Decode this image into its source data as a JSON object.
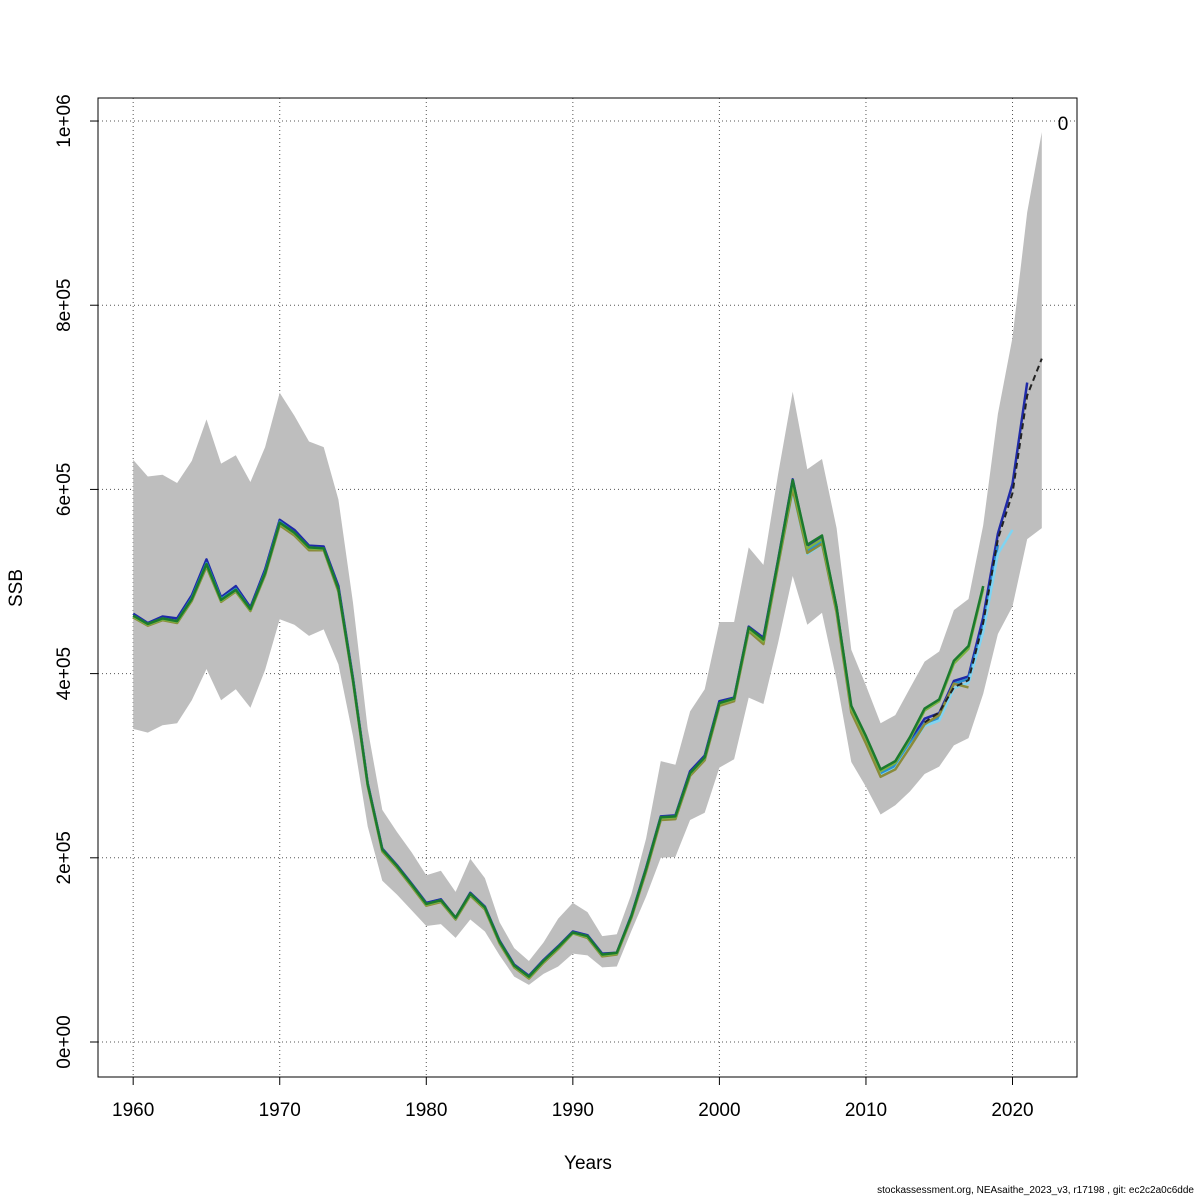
{
  "chart_data": {
    "type": "line",
    "title": "",
    "xlabel": "Years",
    "ylabel": "SSB",
    "xlim": [
      1957.6,
      2024.4
    ],
    "ylim": [
      -38000,
      1025000
    ],
    "x_ticks": [
      1960,
      1970,
      1980,
      1990,
      2000,
      2010,
      2020
    ],
    "y_ticks": [
      0,
      200000,
      400000,
      600000,
      800000,
      1000000
    ],
    "y_tick_labels": [
      "0e+00",
      "2e+05",
      "4e+05",
      "6e+05",
      "8e+05",
      "1e+06"
    ],
    "grid": true,
    "annotation": "0",
    "confidence_band": {
      "color": "#bebebe",
      "x": [
        1960,
        1961,
        1962,
        1963,
        1964,
        1965,
        1966,
        1967,
        1968,
        1969,
        1970,
        1971,
        1972,
        1973,
        1974,
        1975,
        1976,
        1977,
        1978,
        1979,
        1980,
        1981,
        1982,
        1983,
        1984,
        1985,
        1986,
        1987,
        1988,
        1989,
        1990,
        1991,
        1992,
        1993,
        1994,
        1995,
        1996,
        1997,
        1998,
        1999,
        2000,
        2001,
        2002,
        2003,
        2004,
        2005,
        2006,
        2007,
        2008,
        2009,
        2010,
        2011,
        2012,
        2013,
        2014,
        2015,
        2016,
        2017,
        2018,
        2019,
        2020,
        2021,
        2022
      ],
      "lower": [
        340000,
        336000,
        344000,
        346000,
        371000,
        405000,
        371000,
        383000,
        363000,
        404000,
        459000,
        453000,
        441000,
        448000,
        410000,
        332000,
        234000,
        175000,
        160000,
        143000,
        126000,
        128000,
        113000,
        133000,
        120000,
        94000,
        71000,
        62000,
        74000,
        82000,
        96000,
        94000,
        81000,
        82000,
        121000,
        158000,
        200000,
        201000,
        241000,
        249000,
        298000,
        307000,
        374000,
        367000,
        433000,
        506000,
        453000,
        466000,
        393000,
        304000,
        277000,
        247000,
        257000,
        272000,
        291000,
        299000,
        322000,
        330000,
        378000,
        443000,
        473000,
        546000,
        558000
      ],
      "upper": [
        632000,
        614000,
        616000,
        607000,
        631000,
        676000,
        628000,
        637000,
        608000,
        646000,
        705000,
        680000,
        652000,
        646000,
        589000,
        477000,
        340000,
        252000,
        228000,
        206000,
        181000,
        186000,
        163000,
        199000,
        178000,
        130000,
        102000,
        88000,
        108000,
        134000,
        151000,
        141000,
        115000,
        117000,
        161000,
        221000,
        305000,
        301000,
        359000,
        383000,
        456000,
        456000,
        537000,
        518000,
        616000,
        706000,
        622000,
        633000,
        558000,
        426000,
        387000,
        346000,
        355000,
        384000,
        413000,
        424000,
        469000,
        481000,
        561000,
        682000,
        765000,
        901000,
        988000
      ]
    },
    "series": [
      {
        "color": "#1f2aa8",
        "x": [
          1960,
          1961,
          1962,
          1963,
          1964,
          1965,
          1966,
          1967,
          1968,
          1969,
          1970,
          1971,
          1972,
          1973,
          1974,
          1975,
          1976,
          1977,
          1978,
          1979,
          1980,
          1981,
          1982,
          1983,
          1984,
          1985,
          1986,
          1987,
          1988,
          1989,
          1990,
          1991,
          1992,
          1993,
          1994,
          1995,
          1996,
          1997,
          1998,
          1999,
          2000,
          2001,
          2002,
          2003,
          2004,
          2005,
          2006,
          2007,
          2008,
          2009,
          2010,
          2011,
          2012,
          2013,
          2014,
          2015,
          2016,
          2017,
          2018,
          2019,
          2020,
          2021
        ],
        "values": [
          465000,
          455000,
          462000,
          460000,
          485000,
          524000,
          483000,
          495000,
          472000,
          513000,
          567000,
          556000,
          539000,
          538000,
          495000,
          395000,
          281000,
          210000,
          192000,
          172000,
          151000,
          155000,
          135000,
          162000,
          147000,
          110000,
          84000,
          72000,
          89000,
          104000,
          120000,
          116000,
          96000,
          97000,
          138000,
          189000,
          245000,
          246000,
          294000,
          311000,
          370000,
          374000,
          451000,
          439000,
          523000,
          611000,
          537000,
          548000,
          472000,
          363000,
          330000,
          294000,
          303000,
          327000,
          351000,
          357000,
          392000,
          397000,
          461000,
          552000,
          606000,
          716000
        ]
      },
      {
        "color": "#2a8fd0",
        "x": [
          1960,
          1961,
          1962,
          1963,
          1964,
          1965,
          1966,
          1967,
          1968,
          1969,
          1970,
          1971,
          1972,
          1973,
          1974,
          1975,
          1976,
          1977,
          1978,
          1979,
          1980,
          1981,
          1982,
          1983,
          1984,
          1985,
          1986,
          1987,
          1988,
          1989,
          1990,
          1991,
          1992,
          1993,
          1994,
          1995,
          1996,
          1997,
          1998,
          1999,
          2000,
          2001,
          2002,
          2003,
          2004,
          2005,
          2006,
          2007,
          2008,
          2009,
          2010,
          2011,
          2012,
          2013,
          2014,
          2015,
          2016,
          2017,
          2018,
          2019
        ],
        "values": [
          463000,
          454000,
          460000,
          457000,
          482000,
          520000,
          481000,
          492000,
          470000,
          510000,
          565000,
          553000,
          537000,
          536000,
          492000,
          393000,
          280000,
          209000,
          191000,
          171000,
          150000,
          154000,
          134000,
          161000,
          146000,
          109000,
          83000,
          71000,
          88000,
          103000,
          119000,
          115000,
          95000,
          96000,
          137000,
          188000,
          244000,
          245000,
          292000,
          309000,
          368000,
          373000,
          449000,
          436000,
          521000,
          608000,
          533000,
          543000,
          470000,
          361000,
          328000,
          291000,
          300000,
          324000,
          346000,
          352000,
          389000,
          394000,
          452000,
          540000
        ]
      },
      {
        "color": "#7fd4f2",
        "x": [
          1960,
          1961,
          1962,
          1963,
          1964,
          1965,
          1966,
          1967,
          1968,
          1969,
          1970,
          1971,
          1972,
          1973,
          1974,
          1975,
          1976,
          1977,
          1978,
          1979,
          1980,
          1981,
          1982,
          1983,
          1984,
          1985,
          1986,
          1987,
          1988,
          1989,
          1990,
          1991,
          1992,
          1993,
          1994,
          1995,
          1996,
          1997,
          1998,
          1999,
          2000,
          2001,
          2002,
          2003,
          2004,
          2005,
          2006,
          2007,
          2008,
          2009,
          2010,
          2011,
          2012,
          2013,
          2014,
          2015,
          2016,
          2017,
          2018,
          2019,
          2020
        ],
        "values": [
          462000,
          453000,
          459000,
          456000,
          480000,
          517000,
          479000,
          490000,
          469000,
          508000,
          562000,
          551000,
          535000,
          535000,
          490000,
          392000,
          279000,
          208000,
          190000,
          170000,
          149000,
          153000,
          133000,
          160000,
          145000,
          108000,
          82000,
          70000,
          87000,
          102000,
          118000,
          114000,
          94000,
          95000,
          136000,
          186000,
          242000,
          243000,
          290000,
          307000,
          366000,
          371000,
          447000,
          433000,
          518000,
          598000,
          530000,
          540000,
          467000,
          359000,
          325000,
          289000,
          297000,
          321000,
          343000,
          349000,
          384000,
          390000,
          445000,
          530000,
          556000
        ]
      },
      {
        "color": "#8b8b3a",
        "x": [
          1960,
          1961,
          1962,
          1963,
          1964,
          1965,
          1966,
          1967,
          1968,
          1969,
          1970,
          1971,
          1972,
          1973,
          1974,
          1975,
          1976,
          1977,
          1978,
          1979,
          1980,
          1981,
          1982,
          1983,
          1984,
          1985,
          1986,
          1987,
          1988,
          1989,
          1990,
          1991,
          1992,
          1993,
          1994,
          1995,
          1996,
          1997,
          1998,
          1999,
          2000,
          2001,
          2002,
          2003,
          2004,
          2005,
          2006,
          2007,
          2008,
          2009,
          2010,
          2011,
          2012,
          2013,
          2014,
          2015,
          2016,
          2017
        ],
        "values": [
          461000,
          452000,
          458000,
          455000,
          479000,
          516000,
          478000,
          489000,
          468000,
          507000,
          561000,
          550000,
          534000,
          534000,
          489000,
          391000,
          278000,
          207000,
          189000,
          169000,
          148000,
          152000,
          133000,
          159000,
          144000,
          107000,
          81000,
          69000,
          86000,
          101000,
          118000,
          113000,
          93000,
          95000,
          135000,
          185000,
          241000,
          242000,
          289000,
          306000,
          365000,
          370000,
          446000,
          432000,
          517000,
          600000,
          531000,
          541000,
          466000,
          358000,
          324000,
          288000,
          296000,
          320000,
          345000,
          355000,
          389000,
          385000
        ]
      },
      {
        "color": "#7cb342",
        "x": [
          1960,
          1961,
          1962,
          1963,
          1964,
          1965,
          1966,
          1967,
          1968,
          1969,
          1970,
          1971,
          1972,
          1973,
          1974,
          1975,
          1976,
          1977,
          1978,
          1979,
          1980,
          1981,
          1982,
          1983,
          1984,
          1985,
          1986,
          1987,
          1988,
          1989,
          1990,
          1991,
          1992,
          1993,
          1994,
          1995,
          1996,
          1997,
          1998,
          1999,
          2000,
          2001,
          2002,
          2003,
          2004,
          2005,
          2006,
          2007,
          2008,
          2009,
          2010,
          2011,
          2012,
          2013,
          2014,
          2015,
          2016,
          2017,
          2018
        ],
        "values": [
          462000,
          453000,
          459000,
          456000,
          480000,
          518000,
          479000,
          490000,
          469000,
          508000,
          563000,
          552000,
          536000,
          535000,
          491000,
          392000,
          279000,
          208000,
          190000,
          170000,
          149000,
          153000,
          134000,
          160000,
          145000,
          108000,
          82000,
          70000,
          87000,
          102000,
          118000,
          114000,
          94000,
          96000,
          136000,
          187000,
          243000,
          244000,
          291000,
          308000,
          367000,
          372000,
          448000,
          435000,
          520000,
          606000,
          536000,
          546000,
          470000,
          362000,
          330000,
          294000,
          303000,
          329000,
          360000,
          370000,
          411000,
          427000,
          492000
        ]
      },
      {
        "color": "#1b7a2e",
        "x": [
          1960,
          1961,
          1962,
          1963,
          1964,
          1965,
          1966,
          1967,
          1968,
          1969,
          1970,
          1971,
          1972,
          1973,
          1974,
          1975,
          1976,
          1977,
          1978,
          1979,
          1980,
          1981,
          1982,
          1983,
          1984,
          1985,
          1986,
          1987,
          1988,
          1989,
          1990,
          1991,
          1992,
          1993,
          1994,
          1995,
          1996,
          1997,
          1998,
          1999,
          2000,
          2001,
          2002,
          2003,
          2004,
          2005,
          2006,
          2007,
          2008,
          2009,
          2010,
          2011,
          2012,
          2013,
          2014,
          2015,
          2016,
          2017,
          2018
        ],
        "values": [
          463000,
          454000,
          460000,
          457000,
          481000,
          519000,
          480000,
          491000,
          470000,
          509000,
          564000,
          553000,
          537000,
          536000,
          492000,
          393000,
          280000,
          209000,
          191000,
          171000,
          150000,
          154000,
          135000,
          161000,
          146000,
          109000,
          83000,
          71000,
          88000,
          103000,
          119000,
          115000,
          95000,
          97000,
          137000,
          188000,
          244000,
          245000,
          292000,
          309000,
          368000,
          373000,
          450000,
          437000,
          522000,
          610000,
          540000,
          550000,
          472000,
          365000,
          332000,
          296000,
          305000,
          331000,
          362000,
          372000,
          414000,
          430000,
          495000
        ]
      },
      {
        "color": "#222222",
        "dashed": true,
        "x": [
          2014,
          2015,
          2016,
          2017,
          2018,
          2019,
          2020,
          2021,
          2022
        ],
        "values": [
          347000,
          358000,
          385000,
          393000,
          455000,
          546000,
          596000,
          702000,
          742000
        ]
      }
    ]
  },
  "footer": "stockassessment.org, NEAsaithe_2023_v3, r17198 , git: ec2c2a0c6dde"
}
